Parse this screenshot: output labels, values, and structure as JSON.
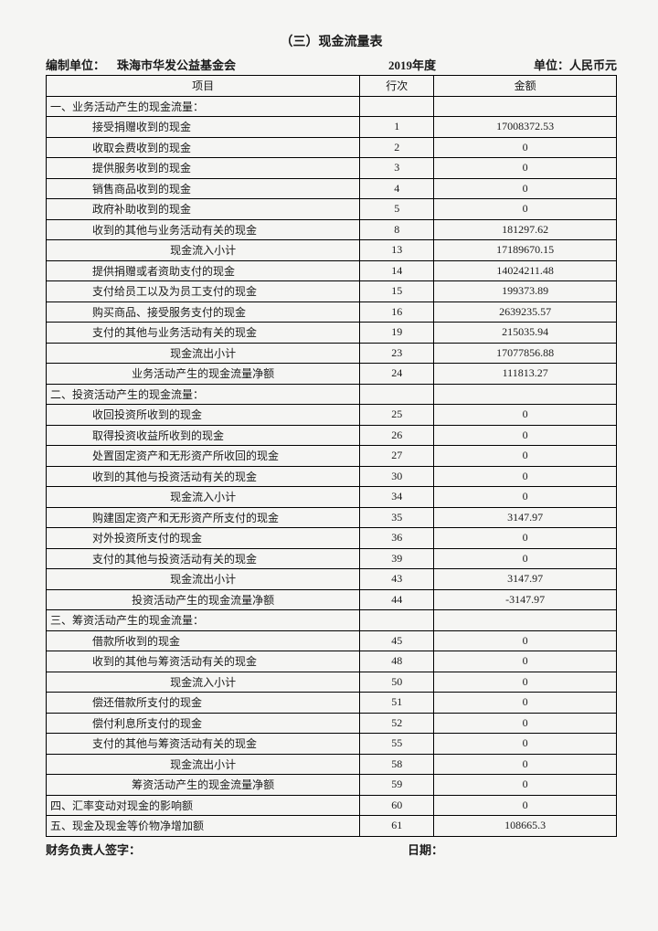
{
  "title": "（三）现金流量表",
  "header": {
    "unit_label": "编制单位：",
    "unit_value": "珠海市华发公益基金会",
    "year": "2019年度",
    "currency_label": "单位：人民币元"
  },
  "columns": {
    "item": "项目",
    "line": "行次",
    "amount": "金额"
  },
  "rows": [
    {
      "type": "section",
      "item": "一、业务活动产生的现金流量：",
      "line": "",
      "amount": ""
    },
    {
      "type": "indent",
      "item": "接受捐赠收到的现金",
      "line": "1",
      "amount": "17008372.53"
    },
    {
      "type": "indent",
      "item": "收取会费收到的现金",
      "line": "2",
      "amount": "0"
    },
    {
      "type": "indent",
      "item": "提供服务收到的现金",
      "line": "3",
      "amount": "0"
    },
    {
      "type": "indent",
      "item": "销售商品收到的现金",
      "line": "4",
      "amount": "0"
    },
    {
      "type": "indent",
      "item": "政府补助收到的现金",
      "line": "5",
      "amount": "0"
    },
    {
      "type": "indent",
      "item": "收到的其他与业务活动有关的现金",
      "line": "8",
      "amount": "181297.62"
    },
    {
      "type": "center",
      "item": "现金流入小计",
      "line": "13",
      "amount": "17189670.15"
    },
    {
      "type": "indent",
      "item": "提供捐赠或者资助支付的现金",
      "line": "14",
      "amount": "14024211.48"
    },
    {
      "type": "indent",
      "item": "支付给员工以及为员工支付的现金",
      "line": "15",
      "amount": "199373.89"
    },
    {
      "type": "indent",
      "item": "购买商品、接受服务支付的现金",
      "line": "16",
      "amount": "2639235.57"
    },
    {
      "type": "indent",
      "item": "支付的其他与业务活动有关的现金",
      "line": "19",
      "amount": "215035.94"
    },
    {
      "type": "center",
      "item": "现金流出小计",
      "line": "23",
      "amount": "17077856.88"
    },
    {
      "type": "center",
      "item": "业务活动产生的现金流量净额",
      "line": "24",
      "amount": "111813.27"
    },
    {
      "type": "section",
      "item": "二、投资活动产生的现金流量：",
      "line": "",
      "amount": ""
    },
    {
      "type": "indent",
      "item": "收回投资所收到的现金",
      "line": "25",
      "amount": "0"
    },
    {
      "type": "indent",
      "item": "取得投资收益所收到的现金",
      "line": "26",
      "amount": "0"
    },
    {
      "type": "indent",
      "item": "处置固定资产和无形资产所收回的现金",
      "line": "27",
      "amount": "0"
    },
    {
      "type": "indent",
      "item": "收到的其他与投资活动有关的现金",
      "line": "30",
      "amount": "0"
    },
    {
      "type": "center",
      "item": "现金流入小计",
      "line": "34",
      "amount": "0"
    },
    {
      "type": "indent",
      "item": "购建固定资产和无形资产所支付的现金",
      "line": "35",
      "amount": "3147.97"
    },
    {
      "type": "indent",
      "item": "对外投资所支付的现金",
      "line": "36",
      "amount": "0"
    },
    {
      "type": "indent",
      "item": "支付的其他与投资活动有关的现金",
      "line": "39",
      "amount": "0"
    },
    {
      "type": "center",
      "item": "现金流出小计",
      "line": "43",
      "amount": "3147.97"
    },
    {
      "type": "center",
      "item": "投资活动产生的现金流量净额",
      "line": "44",
      "amount": "-3147.97"
    },
    {
      "type": "section",
      "item": "三、筹资活动产生的现金流量：",
      "line": "",
      "amount": ""
    },
    {
      "type": "indent",
      "item": "借款所收到的现金",
      "line": "45",
      "amount": "0"
    },
    {
      "type": "indent",
      "item": "收到的其他与筹资活动有关的现金",
      "line": "48",
      "amount": "0"
    },
    {
      "type": "center",
      "item": "现金流入小计",
      "line": "50",
      "amount": "0"
    },
    {
      "type": "indent",
      "item": "偿还借款所支付的现金",
      "line": "51",
      "amount": "0"
    },
    {
      "type": "indent",
      "item": "偿付利息所支付的现金",
      "line": "52",
      "amount": "0"
    },
    {
      "type": "indent",
      "item": "支付的其他与筹资活动有关的现金",
      "line": "55",
      "amount": "0"
    },
    {
      "type": "center",
      "item": "现金流出小计",
      "line": "58",
      "amount": "0"
    },
    {
      "type": "center",
      "item": "筹资活动产生的现金流量净额",
      "line": "59",
      "amount": "0"
    },
    {
      "type": "section",
      "item": "四、汇率变动对现金的影响额",
      "line": "60",
      "amount": "0"
    },
    {
      "type": "section",
      "item": "五、现金及现金等价物净增加额",
      "line": "61",
      "amount": "108665.3"
    }
  ],
  "footer": {
    "sign": "财务负责人签字：",
    "date": "日期："
  },
  "style": {
    "page_bg": "#f5f5f3",
    "border_color": "#000000",
    "font_base": 12,
    "font_header": 13,
    "font_title": 14
  }
}
